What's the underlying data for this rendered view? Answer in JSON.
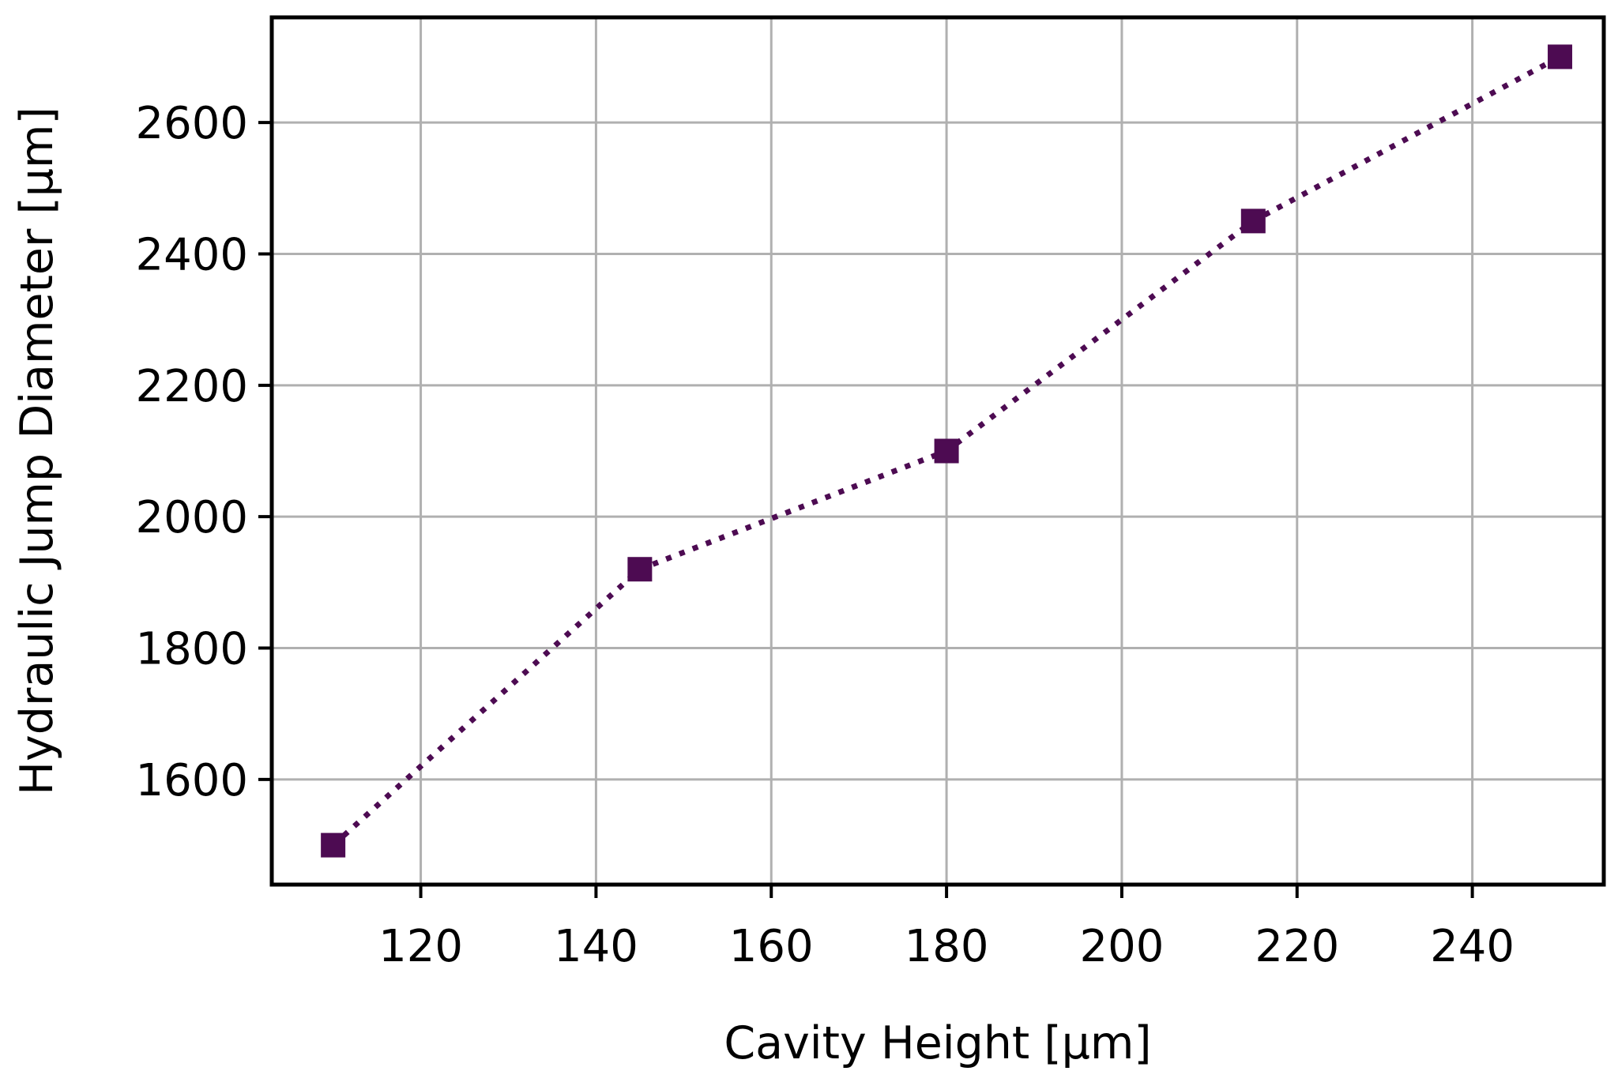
{
  "chart_data": {
    "type": "line",
    "title": "",
    "xlabel": "Cavity Height [μm]",
    "ylabel": "Hydraulic Jump Diameter [μm]",
    "xlim": [
      103,
      255
    ],
    "ylim": [
      1440,
      2760
    ],
    "xticks": [
      120,
      140,
      160,
      180,
      200,
      220,
      240
    ],
    "yticks": [
      1600,
      1800,
      2000,
      2200,
      2400,
      2600
    ],
    "grid": true,
    "legend": "none",
    "series": [
      {
        "x": [
          110,
          145,
          180,
          215,
          250
        ],
        "y": [
          1500,
          1920,
          2100,
          2450,
          2700
        ],
        "color": "#4d0b52",
        "line_style": "dotted",
        "marker": "square"
      }
    ]
  },
  "colors": {
    "grid": "#b0b0b0",
    "frame": "#000000",
    "series": "#4d0b52"
  }
}
